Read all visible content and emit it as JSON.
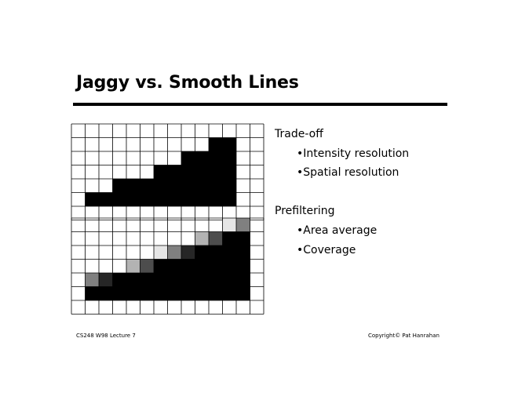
{
  "title": "Jaggy vs. Smooth Lines",
  "sections": [
    {
      "heading": "Trade-off",
      "items": [
        "Intensity resolution",
        "Spatial resolution"
      ]
    },
    {
      "heading": "Prefiltering",
      "items": [
        "Area average",
        "Coverage"
      ]
    }
  ],
  "bullet_glyph": "•",
  "footer": {
    "left": "CS248 W98 Lecture 7",
    "right": "Copyright© Pat Hanrahan"
  },
  "jaggy_grid": {
    "cols": 14,
    "rows": 7,
    "filled": [
      [
        0,
        0,
        0,
        0,
        0,
        0,
        0,
        0,
        0,
        0,
        0,
        0,
        0,
        0
      ],
      [
        0,
        0,
        0,
        0,
        0,
        0,
        0,
        0,
        0,
        0,
        1,
        1,
        0,
        0
      ],
      [
        0,
        0,
        0,
        0,
        0,
        0,
        0,
        0,
        1,
        1,
        1,
        1,
        0,
        0
      ],
      [
        0,
        0,
        0,
        0,
        0,
        0,
        1,
        1,
        1,
        1,
        1,
        1,
        0,
        0
      ],
      [
        0,
        0,
        0,
        1,
        1,
        1,
        1,
        1,
        1,
        1,
        1,
        1,
        0,
        0
      ],
      [
        0,
        1,
        1,
        1,
        1,
        1,
        1,
        1,
        1,
        1,
        1,
        1,
        0,
        0
      ],
      [
        0,
        0,
        0,
        0,
        0,
        0,
        0,
        0,
        0,
        0,
        0,
        0,
        0,
        0
      ]
    ]
  },
  "smooth_grid": {
    "cols": 14,
    "rows": 7,
    "shades": [
      [
        0,
        0,
        0,
        0,
        0,
        0,
        0,
        0,
        0,
        0,
        0,
        0.1,
        0.5,
        0
      ],
      [
        0,
        0,
        0,
        0,
        0,
        0,
        0,
        0,
        0,
        0.3,
        0.7,
        1,
        1,
        0
      ],
      [
        0,
        0,
        0,
        0,
        0,
        0,
        0.1,
        0.5,
        0.85,
        1,
        1,
        1,
        1,
        0
      ],
      [
        0,
        0,
        0,
        0,
        0.3,
        0.7,
        1,
        1,
        1,
        1,
        1,
        1,
        1,
        0
      ],
      [
        0,
        0.5,
        0.85,
        1,
        1,
        1,
        1,
        1,
        1,
        1,
        1,
        1,
        1,
        0
      ],
      [
        0,
        1,
        1,
        1,
        1,
        1,
        1,
        1,
        1,
        1,
        1,
        1,
        1,
        0
      ],
      [
        0,
        0,
        0,
        0,
        0,
        0,
        0,
        0,
        0,
        0,
        0,
        0,
        0,
        0
      ]
    ]
  }
}
